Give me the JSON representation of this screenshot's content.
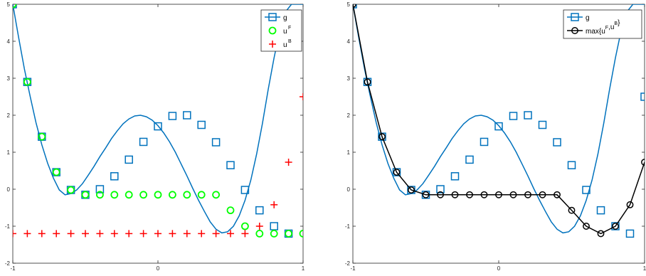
{
  "chart_data": [
    {
      "type": "line",
      "xlim": [
        -1,
        1
      ],
      "ylim": [
        -2,
        5
      ],
      "xticks": [
        "-1",
        "0",
        "1"
      ],
      "yticks": [
        "-2",
        "-1",
        "0",
        "1",
        "2",
        "3",
        "4",
        "5"
      ],
      "grid": false,
      "legend_position": "top-right",
      "legend": [
        {
          "label": "g",
          "sup": ""
        },
        {
          "label": "u",
          "sup": "F"
        },
        {
          "label": "u",
          "sup": "B"
        }
      ],
      "colors": {
        "g": "#0072BD",
        "uF": "#00FF00",
        "uB": "#FF0000"
      },
      "g_curve": {
        "x": [
          -1,
          -0.96,
          -0.92,
          -0.88,
          -0.84,
          -0.8,
          -0.76,
          -0.72,
          -0.68,
          -0.64,
          -0.6,
          -0.56,
          -0.52,
          -0.48,
          -0.44,
          -0.4,
          -0.36,
          -0.32,
          -0.28,
          -0.24,
          -0.2,
          -0.16,
          -0.12,
          -0.08,
          -0.04,
          0,
          0.04,
          0.08,
          0.12,
          0.16,
          0.2,
          0.24,
          0.28,
          0.32,
          0.36,
          0.4,
          0.44,
          0.48,
          0.52,
          0.56,
          0.6,
          0.64,
          0.68,
          0.72,
          0.76,
          0.8,
          0.84,
          0.88,
          0.92,
          0.96,
          1
        ],
        "y": [
          5,
          4.1,
          3.25,
          2.5,
          1.8,
          1.2,
          0.7,
          0.3,
          -0.02,
          -0.15,
          -0.12,
          -0.02,
          0.15,
          0.38,
          0.62,
          0.88,
          1.12,
          1.37,
          1.58,
          1.77,
          1.9,
          1.98,
          2.0,
          1.96,
          1.87,
          1.72,
          1.52,
          1.28,
          1.0,
          0.68,
          0.36,
          0.02,
          -0.3,
          -0.6,
          -0.88,
          -1.08,
          -1.18,
          -1.15,
          -1.0,
          -0.72,
          -0.3,
          0.25,
          0.95,
          1.78,
          2.7,
          3.55,
          4.3,
          4.8,
          5.0,
          5.0,
          5.0
        ]
      },
      "g_markers": {
        "x": [
          -1,
          -0.9,
          -0.8,
          -0.7,
          -0.6,
          -0.5,
          -0.4,
          -0.3,
          -0.2,
          -0.1,
          0,
          0.1,
          0.2,
          0.3,
          0.4,
          0.5,
          0.6,
          0.7,
          0.8,
          0.9
        ],
        "y": [
          5,
          2.9,
          1.42,
          0.46,
          -0.02,
          -0.15,
          0.0,
          0.35,
          0.8,
          1.28,
          1.7,
          1.98,
          2.0,
          1.74,
          1.27,
          0.65,
          -0.02,
          -0.57,
          -1.0,
          -1.2
        ]
      },
      "uF": {
        "x": [
          -1,
          -0.9,
          -0.8,
          -0.7,
          -0.6,
          -0.5,
          -0.4,
          -0.3,
          -0.2,
          -0.1,
          0,
          0.1,
          0.2,
          0.3,
          0.4,
          0.5,
          0.6,
          0.7,
          0.8,
          0.9,
          1
        ],
        "y": [
          5,
          2.9,
          1.42,
          0.46,
          -0.02,
          -0.15,
          -0.15,
          -0.15,
          -0.15,
          -0.15,
          -0.15,
          -0.15,
          -0.15,
          -0.15,
          -0.15,
          -0.57,
          -1.0,
          -1.2,
          -1.2,
          -1.2,
          -1.2
        ]
      },
      "uB": {
        "x": [
          -1,
          -0.9,
          -0.8,
          -0.7,
          -0.6,
          -0.5,
          -0.4,
          -0.3,
          -0.2,
          -0.1,
          0,
          0.1,
          0.2,
          0.3,
          0.4,
          0.5,
          0.6,
          0.7,
          0.8,
          0.9,
          1
        ],
        "y": [
          -1.2,
          -1.2,
          -1.2,
          -1.2,
          -1.2,
          -1.2,
          -1.2,
          -1.2,
          -1.2,
          -1.2,
          -1.2,
          -1.2,
          -1.2,
          -1.2,
          -1.2,
          -1.2,
          -1.2,
          -1.0,
          -0.42,
          0.73,
          2.5
        ]
      }
    },
    {
      "type": "line",
      "xlim": [
        -1,
        1
      ],
      "ylim": [
        -2,
        5
      ],
      "xticks": [
        "-1",
        "0",
        "1"
      ],
      "yticks": [
        "-2",
        "-1",
        "0",
        "1",
        "2",
        "3",
        "4",
        "5"
      ],
      "grid": false,
      "legend_position": "top-right",
      "legend": [
        {
          "label": "g",
          "sup": ""
        },
        {
          "label": "max{u",
          "sup": "F",
          "mid": ",u",
          "sup2": "B",
          "end": "}"
        }
      ],
      "colors": {
        "g": "#0072BD",
        "max": "#000000"
      },
      "g_markers": {
        "x": [
          -1,
          -0.9,
          -0.8,
          -0.7,
          -0.6,
          -0.5,
          -0.4,
          -0.3,
          -0.2,
          -0.1,
          0,
          0.1,
          0.2,
          0.3,
          0.4,
          0.5,
          0.6,
          0.7,
          0.8,
          0.9,
          1
        ],
        "y": [
          5,
          2.9,
          1.42,
          0.46,
          -0.02,
          -0.15,
          0.0,
          0.35,
          0.8,
          1.28,
          1.7,
          1.98,
          2.0,
          1.74,
          1.27,
          0.65,
          -0.02,
          -0.57,
          -1.0,
          -1.2,
          2.5
        ]
      },
      "max_u": {
        "x": [
          -1,
          -0.9,
          -0.8,
          -0.7,
          -0.6,
          -0.5,
          -0.4,
          -0.3,
          -0.2,
          -0.1,
          0,
          0.1,
          0.2,
          0.3,
          0.4,
          0.5,
          0.6,
          0.7,
          0.8,
          0.9,
          1
        ],
        "y": [
          5,
          2.9,
          1.42,
          0.46,
          -0.02,
          -0.15,
          -0.15,
          -0.15,
          -0.15,
          -0.15,
          -0.15,
          -0.15,
          -0.15,
          -0.15,
          -0.15,
          -0.57,
          -1.0,
          -1.2,
          -1.0,
          -0.42,
          0.73
        ]
      }
    }
  ]
}
